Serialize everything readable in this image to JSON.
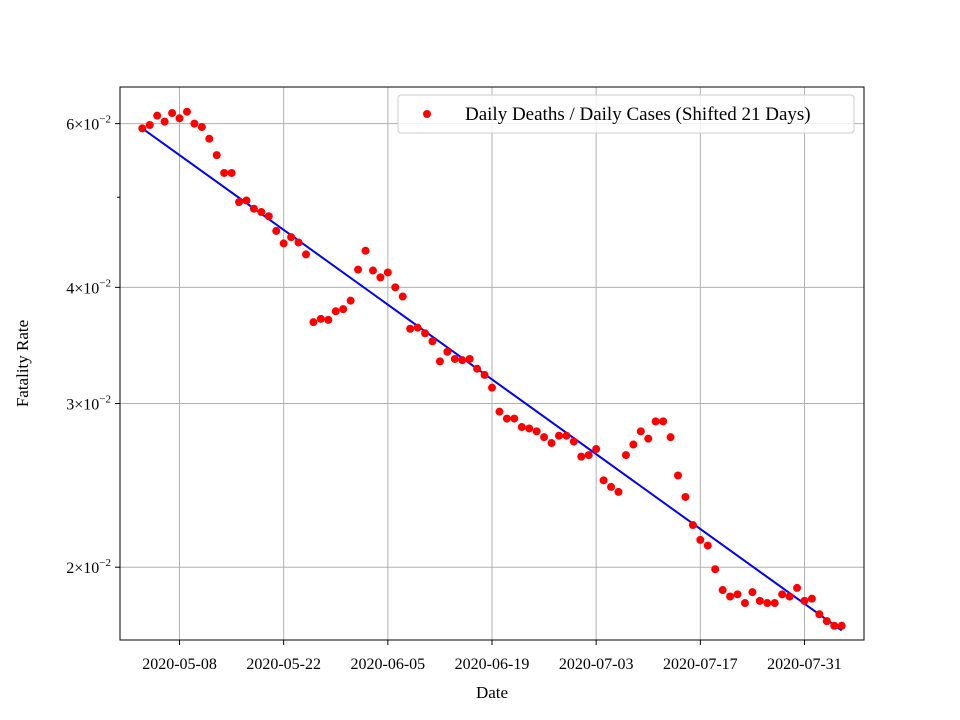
{
  "chart_data": {
    "type": "scatter",
    "title": "",
    "xlabel": "Date",
    "ylabel": "Fatality Rate",
    "y_scale": "log",
    "grid": true,
    "legend_position": "upper-right",
    "x_ticks": [
      "2020-05-08",
      "2020-05-22",
      "2020-06-05",
      "2020-06-19",
      "2020-07-03",
      "2020-07-17",
      "2020-07-31"
    ],
    "y_ticks": [
      {
        "value": 0.02,
        "mantissa": "2",
        "base": "10",
        "exponent": "−2"
      },
      {
        "value": 0.03,
        "mantissa": "3",
        "base": "10",
        "exponent": "−2"
      },
      {
        "value": 0.04,
        "mantissa": "4",
        "base": "10",
        "exponent": "−2"
      },
      {
        "value": 0.06,
        "mantissa": "6",
        "base": "10",
        "exponent": "−2"
      }
    ],
    "xlim": [
      "2020-04-30",
      "2020-08-08"
    ],
    "ylim": [
      0.0167,
      0.0657
    ],
    "series": [
      {
        "name": "Daily Deaths / Daily Cases (Shifted 21 Days)",
        "kind": "scatter",
        "color": "#ff0000",
        "x": [
          "2020-05-03",
          "2020-05-04",
          "2020-05-05",
          "2020-05-06",
          "2020-05-07",
          "2020-05-08",
          "2020-05-09",
          "2020-05-10",
          "2020-05-11",
          "2020-05-12",
          "2020-05-13",
          "2020-05-14",
          "2020-05-15",
          "2020-05-16",
          "2020-05-17",
          "2020-05-18",
          "2020-05-19",
          "2020-05-20",
          "2020-05-21",
          "2020-05-22",
          "2020-05-23",
          "2020-05-24",
          "2020-05-25",
          "2020-05-26",
          "2020-05-27",
          "2020-05-28",
          "2020-05-29",
          "2020-05-30",
          "2020-05-31",
          "2020-06-01",
          "2020-06-02",
          "2020-06-03",
          "2020-06-04",
          "2020-06-05",
          "2020-06-06",
          "2020-06-07",
          "2020-06-08",
          "2020-06-09",
          "2020-06-10",
          "2020-06-11",
          "2020-06-12",
          "2020-06-13",
          "2020-06-14",
          "2020-06-15",
          "2020-06-16",
          "2020-06-17",
          "2020-06-18",
          "2020-06-19",
          "2020-06-20",
          "2020-06-21",
          "2020-06-22",
          "2020-06-23",
          "2020-06-24",
          "2020-06-25",
          "2020-06-26",
          "2020-06-27",
          "2020-06-28",
          "2020-06-29",
          "2020-06-30",
          "2020-07-01",
          "2020-07-02",
          "2020-07-03",
          "2020-07-04",
          "2020-07-05",
          "2020-07-06",
          "2020-07-07",
          "2020-07-08",
          "2020-07-09",
          "2020-07-10",
          "2020-07-11",
          "2020-07-12",
          "2020-07-13",
          "2020-07-14",
          "2020-07-15",
          "2020-07-16",
          "2020-07-17",
          "2020-07-18",
          "2020-07-19",
          "2020-07-20",
          "2020-07-21",
          "2020-07-22",
          "2020-07-23",
          "2020-07-24",
          "2020-07-25",
          "2020-07-26",
          "2020-07-27",
          "2020-07-28",
          "2020-07-29",
          "2020-07-30",
          "2020-07-31",
          "2020-08-01",
          "2020-08-02",
          "2020-08-03",
          "2020-08-04",
          "2020-08-05"
        ],
        "y": [
          0.0593,
          0.0598,
          0.0612,
          0.0603,
          0.0616,
          0.0608,
          0.0618,
          0.06,
          0.0595,
          0.0578,
          0.0555,
          0.0531,
          0.0531,
          0.0494,
          0.0496,
          0.0486,
          0.0482,
          0.0477,
          0.046,
          0.0446,
          0.0453,
          0.0447,
          0.0434,
          0.0367,
          0.037,
          0.0369,
          0.0377,
          0.0379,
          0.0387,
          0.0418,
          0.0438,
          0.0417,
          0.041,
          0.0415,
          0.04,
          0.0391,
          0.0361,
          0.0362,
          0.0357,
          0.035,
          0.0333,
          0.0341,
          0.0335,
          0.0334,
          0.0335,
          0.0327,
          0.0322,
          0.0312,
          0.0294,
          0.0289,
          0.0289,
          0.0283,
          0.0282,
          0.028,
          0.0276,
          0.0272,
          0.0277,
          0.0277,
          0.0273,
          0.0263,
          0.0264,
          0.0268,
          0.0248,
          0.0244,
          0.0241,
          0.0264,
          0.0271,
          0.028,
          0.0275,
          0.0287,
          0.0287,
          0.0276,
          0.0251,
          0.0238,
          0.0222,
          0.0214,
          0.0211,
          0.0199,
          0.0189,
          0.0186,
          0.0187,
          0.0183,
          0.0188,
          0.0184,
          0.0183,
          0.0183,
          0.0187,
          0.0186,
          0.019,
          0.0184,
          0.0185,
          0.0178,
          0.0175,
          0.0173,
          0.0173
        ]
      },
      {
        "name": "",
        "kind": "line",
        "color": "#0000ff",
        "x": [
          "2020-05-03",
          "2020-08-05"
        ],
        "y": [
          0.0593,
          0.0171
        ]
      }
    ]
  }
}
